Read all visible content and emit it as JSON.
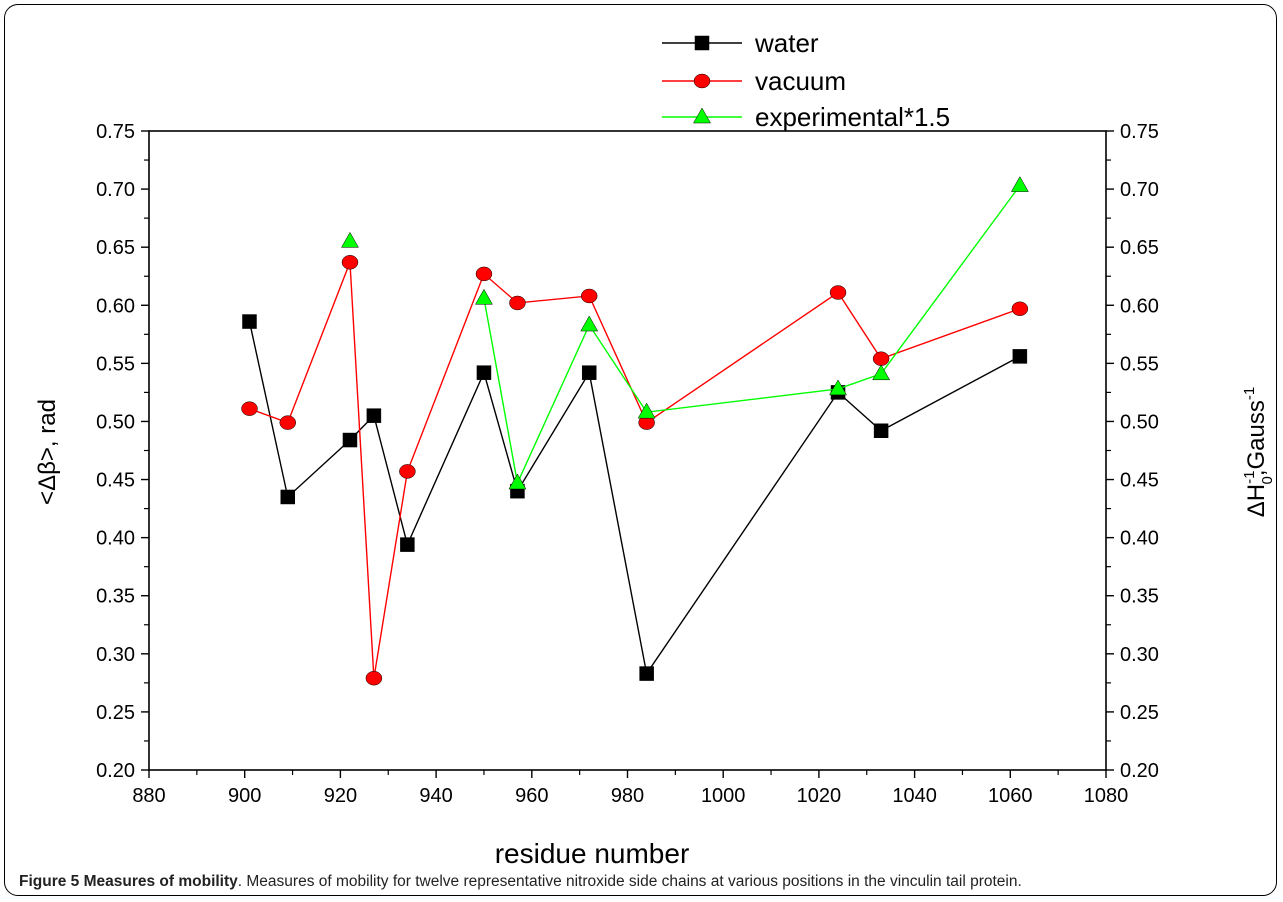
{
  "figure": {
    "caption_label": "Figure 5 Measures of mobility",
    "caption_text": ". Measures of mobility for twelve representative nitroxide side chains at various positions in the vinculin tail protein."
  },
  "chart_data": {
    "type": "line",
    "xlabel": "residue number",
    "ylabel_left": "<Δβ>, rad",
    "ylabel_right": "ΔH0-1,Gauss-1",
    "xlim": [
      880,
      1080
    ],
    "ylim": [
      0.2,
      0.75
    ],
    "x_ticks": [
      "880",
      "900",
      "920",
      "940",
      "960",
      "980",
      "1000",
      "1020",
      "1040",
      "1060",
      "1080"
    ],
    "y_ticks": [
      "0.20",
      "0.25",
      "0.30",
      "0.35",
      "0.40",
      "0.45",
      "0.50",
      "0.55",
      "0.60",
      "0.65",
      "0.70",
      "0.75"
    ],
    "legend_position": "top-right",
    "series": [
      {
        "name": "water",
        "color": "#000000",
        "marker": "square",
        "x": [
          901,
          909,
          922,
          927,
          934,
          950,
          957,
          972,
          984,
          1024,
          1033,
          1062
        ],
        "y": [
          0.586,
          0.435,
          0.484,
          0.505,
          0.394,
          0.542,
          0.44,
          0.542,
          0.283,
          0.525,
          0.492,
          0.556
        ]
      },
      {
        "name": "vacuum",
        "color": "#ff0000",
        "marker": "circle",
        "x": [
          901,
          909,
          922,
          927,
          934,
          950,
          957,
          972,
          984,
          1024,
          1033,
          1062
        ],
        "y": [
          0.511,
          0.499,
          0.637,
          0.279,
          0.457,
          0.627,
          0.602,
          0.608,
          0.499,
          0.611,
          0.554,
          0.597
        ]
      },
      {
        "name": "experimental*1.5",
        "color": "#00ff00",
        "marker": "triangle",
        "segments": [
          {
            "x": [
              922
            ],
            "y": [
              0.655
            ]
          },
          {
            "x": [
              950,
              957,
              972,
              984,
              1024,
              1033,
              1062
            ],
            "y": [
              0.606,
              0.447,
              0.583,
              0.508,
              0.528,
              0.541,
              0.703
            ]
          }
        ]
      }
    ]
  }
}
